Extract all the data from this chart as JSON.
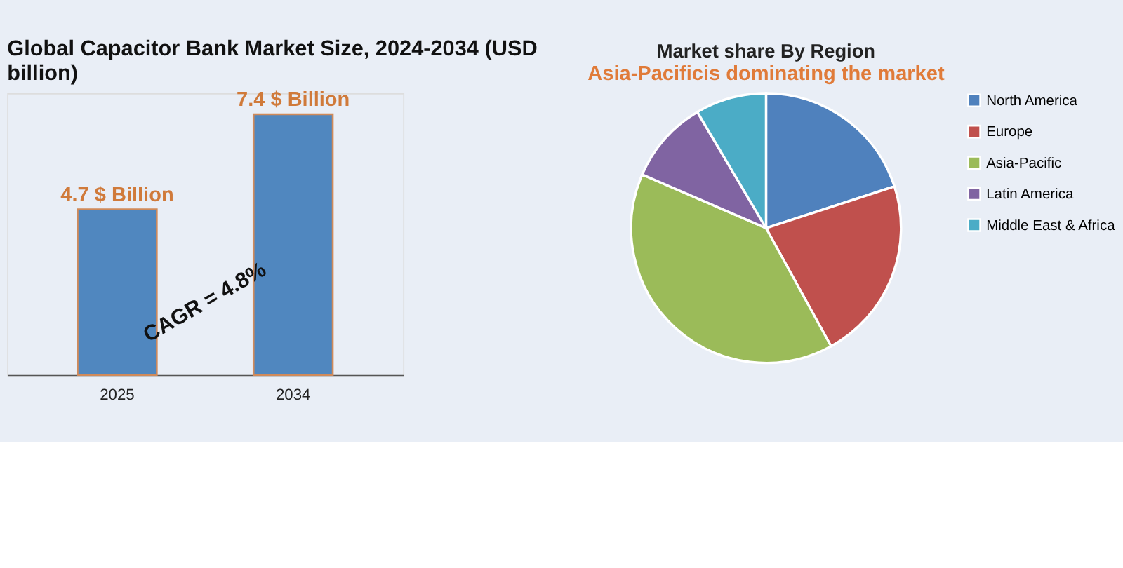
{
  "chart_data": [
    {
      "type": "bar",
      "title": "Global Capacitor Bank Market Size, 2024-2034 (USD billion)",
      "categories": [
        "2025",
        "2034"
      ],
      "values": [
        4.7,
        7.4
      ],
      "value_labels": [
        "4.7 $ Billion",
        "7.4 $ Billion"
      ],
      "color": "#5087bf",
      "annotations": [
        "CAGR = 4.8%"
      ]
    },
    {
      "type": "pie",
      "title": "Market share By Region",
      "subtitle": "Asia-Pacificis dominating the market",
      "categories": [
        "North America",
        "Europe",
        "Asia-Pacific",
        "Latin America",
        "Middle East & Africa"
      ],
      "values": [
        20,
        22,
        39.5,
        10,
        8.5
      ],
      "colors": [
        "#4f81bd",
        "#c0504d",
        "#9bbb59",
        "#8064a2",
        "#4bacc6"
      ],
      "legend": "right"
    }
  ]
}
